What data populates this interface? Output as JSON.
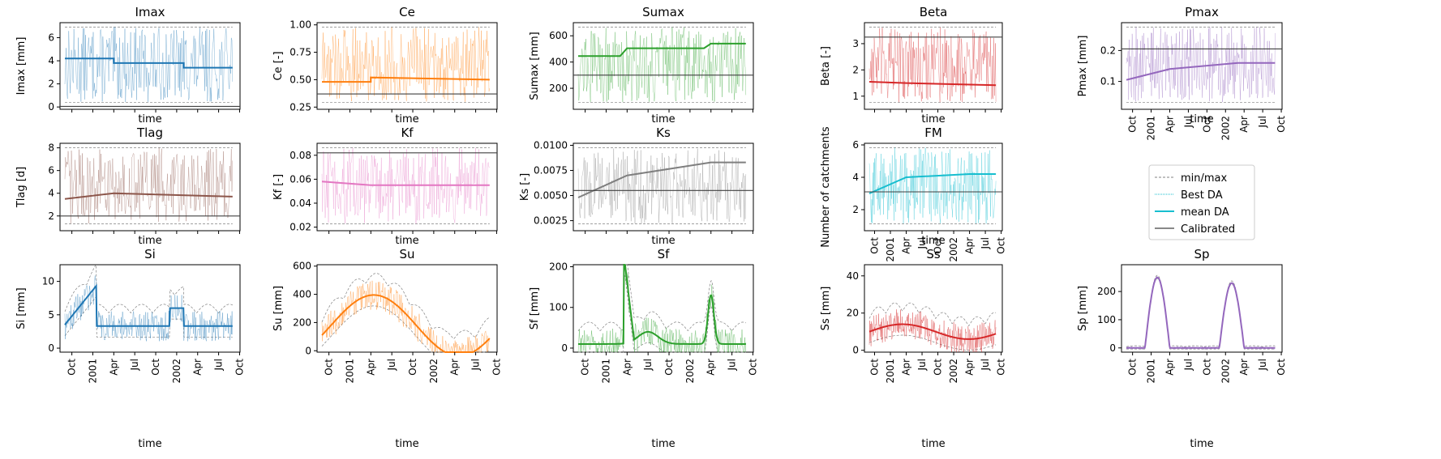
{
  "chart_data": [
    {
      "type": "line",
      "title": "Imax",
      "ylabel": "Imax [mm]",
      "xlabel": "time",
      "ylim": [
        -0.2,
        7.3
      ],
      "yticks": [
        0,
        2,
        4,
        6
      ],
      "ytick_labels": [
        "0",
        "2",
        "4",
        "6"
      ],
      "color": "#1f77b4",
      "series": [
        {
          "name": "min/max",
          "values": [
            [
              0.7,
              6.9
            ],
            [
              0.7,
              6.9
            ],
            [
              1.5,
              6.9
            ]
          ],
          "x": [
            "2000-10",
            "2001-04",
            "2002-09"
          ]
        },
        {
          "name": "mean DA",
          "x": [
            "2000-09",
            "2001-04",
            "2001-04",
            "2002-02",
            "2002-02",
            "2002-09"
          ],
          "values": [
            4.2,
            4.2,
            3.8,
            3.8,
            3.4,
            3.4
          ]
        },
        {
          "name": "Calibrated",
          "values": [
            0.05
          ]
        }
      ],
      "xtick_labels": [
        "Oct",
        "2001",
        "Apr",
        "Jul",
        "Oct",
        "2002",
        "Apr",
        "Jul",
        "Oct"
      ],
      "show_xticklabels": false
    },
    {
      "type": "line",
      "title": "Ce",
      "ylabel": "Ce [-]",
      "xlabel": "time",
      "ylim": [
        0.23,
        1.02
      ],
      "yticks": [
        0.25,
        0.5,
        0.75,
        1.0
      ],
      "ytick_labels": [
        "0.25",
        "0.50",
        "0.75",
        "1.00"
      ],
      "color": "#ff7f0e",
      "series": [
        {
          "name": "mean DA",
          "x": [
            "2000-09",
            "2001-04",
            "2001-04",
            "2002-09"
          ],
          "values": [
            0.48,
            0.48,
            0.52,
            0.5
          ]
        },
        {
          "name": "Calibrated",
          "values": [
            0.37
          ]
        }
      ],
      "show_xticklabels": false
    },
    {
      "type": "line",
      "title": "Sumax",
      "ylabel": "Sumax [mm]",
      "xlabel": "time",
      "ylim": [
        40,
        700
      ],
      "yticks": [
        200,
        400,
        600
      ],
      "ytick_labels": [
        "200",
        "400",
        "600"
      ],
      "color": "#2ca02c",
      "series": [
        {
          "name": "mean DA",
          "x": [
            "2000-09",
            "2001-03",
            "2001-04",
            "2002-03",
            "2002-04",
            "2002-09"
          ],
          "values": [
            445,
            445,
            505,
            505,
            540,
            540
          ]
        },
        {
          "name": "Calibrated",
          "values": [
            300
          ]
        }
      ],
      "show_xticklabels": false
    },
    {
      "type": "line",
      "title": "Beta",
      "ylabel": "Beta [-]",
      "xlabel": "time",
      "ylim": [
        0.5,
        3.8
      ],
      "yticks": [
        1,
        2,
        3
      ],
      "ytick_labels": [
        "1",
        "2",
        "3"
      ],
      "color": "#d62728",
      "series": [
        {
          "name": "mean DA",
          "x": [
            "2000-09",
            "2001-04",
            "2002-09"
          ],
          "values": [
            1.55,
            1.5,
            1.42
          ]
        },
        {
          "name": "Calibrated",
          "values": [
            3.25
          ]
        }
      ],
      "show_xticklabels": false
    },
    {
      "type": "line",
      "title": "Pmax",
      "ylabel": "Pmax [mm]",
      "xlabel": "time",
      "ylim": [
        0.01,
        0.29
      ],
      "yticks": [
        0.1,
        0.2
      ],
      "ytick_labels": [
        "0.1",
        "0.2"
      ],
      "color": "#9467bd",
      "series": [
        {
          "name": "mean DA",
          "x": [
            "2000-09",
            "2001-04",
            "2002-03",
            "2002-09"
          ],
          "values": [
            0.105,
            0.14,
            0.16,
            0.16
          ]
        },
        {
          "name": "Calibrated",
          "values": [
            0.205
          ]
        }
      ],
      "show_xticklabels": true
    },
    {
      "type": "line",
      "title": "Tlag",
      "ylabel": "Tlag [d]",
      "xlabel": "time",
      "ylim": [
        0.7,
        8.4
      ],
      "yticks": [
        2,
        4,
        6,
        8
      ],
      "ytick_labels": [
        "2",
        "4",
        "6",
        "8"
      ],
      "color": "#8c564b",
      "series": [
        {
          "name": "mean DA",
          "x": [
            "2000-09",
            "2001-04",
            "2002-09"
          ],
          "values": [
            3.5,
            4.0,
            3.7
          ]
        },
        {
          "name": "Calibrated",
          "values": [
            2.0
          ]
        }
      ],
      "show_xticklabels": false
    },
    {
      "type": "line",
      "title": "Kf",
      "ylabel": "Kf [-]",
      "xlabel": "time",
      "ylim": [
        0.017,
        0.09
      ],
      "yticks": [
        0.02,
        0.04,
        0.06,
        0.08
      ],
      "ytick_labels": [
        "0.02",
        "0.04",
        "0.06",
        "0.08"
      ],
      "color": "#e377c2",
      "series": [
        {
          "name": "mean DA",
          "x": [
            "2000-09",
            "2001-04",
            "2002-09"
          ],
          "values": [
            0.058,
            0.055,
            0.055
          ]
        },
        {
          "name": "Calibrated",
          "values": [
            0.082
          ]
        }
      ],
      "show_xticklabels": false
    },
    {
      "type": "line",
      "title": "Ks",
      "ylabel": "Ks [-]",
      "xlabel": "time",
      "ylim": [
        0.0015,
        0.0102
      ],
      "yticks": [
        0.0025,
        0.005,
        0.0075,
        0.01
      ],
      "ytick_labels": [
        "0.0025",
        "0.0050",
        "0.0075",
        "0.0100"
      ],
      "color": "#7f7f7f",
      "series": [
        {
          "name": "mean DA",
          "x": [
            "2000-09",
            "2001-04",
            "2002-04",
            "2002-09"
          ],
          "values": [
            0.0048,
            0.007,
            0.0083,
            0.0083
          ]
        },
        {
          "name": "Calibrated",
          "values": [
            0.0055
          ]
        }
      ],
      "show_xticklabels": false
    },
    {
      "type": "line",
      "title": "FM",
      "ylabel": "Number of catchments",
      "xlabel": "time",
      "ylim": [
        0.7,
        6.1
      ],
      "yticks": [
        2,
        4,
        6
      ],
      "ytick_labels": [
        "2",
        "4",
        "6"
      ],
      "color": "#17becf",
      "series": [
        {
          "name": "mean DA",
          "x": [
            "2000-09",
            "2001-04",
            "2002-04",
            "2002-09"
          ],
          "values": [
            3.0,
            4.0,
            4.2,
            4.2
          ]
        },
        {
          "name": "Calibrated",
          "values": [
            3.1
          ]
        }
      ],
      "show_xticklabels": true
    },
    {
      "type": "line",
      "title": "Si",
      "ylabel": "Si [mm]",
      "xlabel": "time",
      "ylim": [
        -0.6,
        12.5
      ],
      "yticks": [
        0,
        5,
        10
      ],
      "ytick_labels": [
        "0",
        "5",
        "10"
      ],
      "color": "#1f77b4",
      "show_xticklabels": true
    },
    {
      "type": "line",
      "title": "Su",
      "ylabel": "Su [mm]",
      "xlabel": "time",
      "ylim": [
        -10,
        610
      ],
      "yticks": [
        0,
        200,
        400,
        600
      ],
      "ytick_labels": [
        "0",
        "200",
        "400",
        "600"
      ],
      "color": "#ff7f0e",
      "show_xticklabels": true
    },
    {
      "type": "line",
      "title": "Sf",
      "ylabel": "Sf [mm]",
      "xlabel": "time",
      "ylim": [
        -10,
        205
      ],
      "yticks": [
        0,
        100,
        200
      ],
      "ytick_labels": [
        "0",
        "100",
        "200"
      ],
      "color": "#2ca02c",
      "show_xticklabels": true
    },
    {
      "type": "line",
      "title": "Ss",
      "ylabel": "Ss [mm]",
      "xlabel": "time",
      "ylim": [
        -1,
        46
      ],
      "yticks": [
        0,
        20,
        40
      ],
      "ytick_labels": [
        "0",
        "20",
        "40"
      ],
      "color": "#d62728",
      "show_xticklabels": true
    },
    {
      "type": "line",
      "title": "Sp",
      "ylabel": "Sp [mm]",
      "xlabel": "time",
      "ylim": [
        -15,
        295
      ],
      "yticks": [
        0,
        100,
        200
      ],
      "ytick_labels": [
        "0",
        "100",
        "200"
      ],
      "color": "#9467bd",
      "show_xticklabels": true
    }
  ],
  "x_axis": {
    "tick_labels": [
      "Oct",
      "2001",
      "Apr",
      "Jul",
      "Oct",
      "2002",
      "Apr",
      "Jul",
      "Oct"
    ]
  },
  "legend": {
    "placement": "right of FM panel",
    "entries": [
      {
        "label": "min/max",
        "style": "dashed",
        "color": "#808080"
      },
      {
        "label": "Best DA",
        "style": "dotted-thin",
        "color": "#17becf"
      },
      {
        "label": "mean DA",
        "style": "solid",
        "color": "#17becf"
      },
      {
        "label": "Calibrated",
        "style": "solid",
        "color": "#404040"
      }
    ]
  }
}
